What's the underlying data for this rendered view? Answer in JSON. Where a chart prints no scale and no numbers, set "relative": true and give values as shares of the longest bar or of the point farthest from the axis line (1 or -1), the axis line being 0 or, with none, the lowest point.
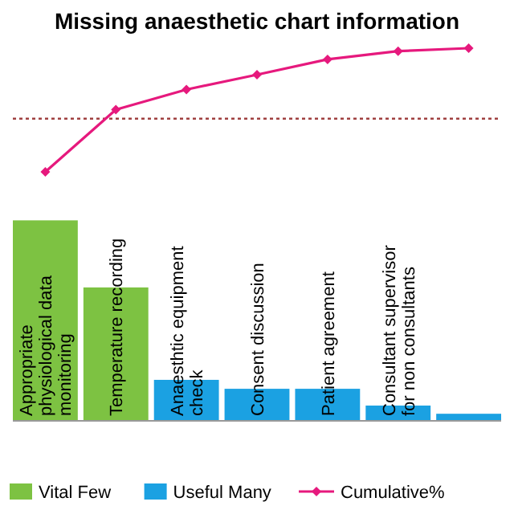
{
  "chart_data": {
    "type": "bar",
    "title": "Missing anaesthetic chart information",
    "relative": true,
    "categories": [
      "Appropriate physiological data monitoring",
      "Temperature recording",
      "Anaesthtic equipment check",
      "Consent discussion",
      "Patient agreement",
      "Consultant supervisor for non consultants",
      null
    ],
    "series": [
      {
        "name": "Vital Few",
        "color": "#7dc242",
        "values": [
          0.538,
          0.358,
          null,
          null,
          null,
          null,
          null
        ]
      },
      {
        "name": "Useful Many",
        "color": "#1ba1e2",
        "values": [
          null,
          null,
          0.11,
          0.086,
          0.086,
          0.041,
          0.019
        ]
      },
      {
        "name": "Cumulative%",
        "type": "line",
        "color": "#e6197d",
        "marker": "diamond",
        "values": [
          0.668,
          0.835,
          0.889,
          0.929,
          0.97,
          0.992,
          1.0
        ]
      }
    ],
    "ref_lines": [
      {
        "axis": "y",
        "value": 0.811,
        "color": "#a04040",
        "line_style": "dotted"
      }
    ],
    "legend": "bottom",
    "grid": false
  }
}
